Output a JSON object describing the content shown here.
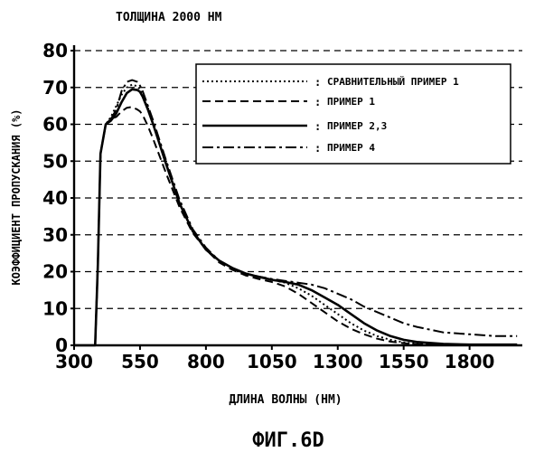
{
  "chart_data": {
    "type": "line",
    "title": "ТОЛЩИНА 2000 НМ",
    "xlabel": "ДЛИНА ВОЛНЫ (НМ)",
    "ylabel": "КОЭФФИЦИЕНТ ПРОПУСКАНИЯ (%)",
    "caption": "ФИГ.6D",
    "xlim": [
      300,
      2000
    ],
    "ylim": [
      0,
      80
    ],
    "xticks": [
      300,
      550,
      800,
      1050,
      1300,
      1550,
      1800
    ],
    "yticks": [
      0,
      10,
      20,
      30,
      40,
      50,
      60,
      70,
      80
    ],
    "grid": "horizontal dashed",
    "legend_position": "top-right",
    "series": [
      {
        "name": "СРАВНИТЕЛЬНЫЙ ПРИМЕР 1",
        "style": "dotted",
        "x": [
          300,
          340,
          360,
          380,
          390,
          400,
          420,
          440,
          460,
          480,
          500,
          520,
          540,
          550,
          560,
          580,
          600,
          650,
          700,
          750,
          800,
          850,
          900,
          950,
          1000,
          1050,
          1100,
          1150,
          1200,
          1250,
          1300,
          1350,
          1400,
          1450,
          1500,
          1550,
          1600,
          1700,
          1800,
          1900,
          1980
        ],
        "y": [
          0,
          0,
          0,
          0,
          22,
          52,
          60,
          62,
          65,
          68,
          70,
          70.8,
          70.3,
          69.5,
          68,
          64.5,
          60,
          49,
          38.5,
          31,
          26,
          23,
          21,
          19.5,
          18.6,
          17.8,
          17,
          15.5,
          13.5,
          11,
          8.5,
          6,
          4,
          2.5,
          1.5,
          0.8,
          0.4,
          0.2,
          0.1,
          0.1,
          0.1
        ]
      },
      {
        "name": "ПРИМЕР 1",
        "style": "dashed",
        "x": [
          300,
          340,
          360,
          380,
          390,
          400,
          420,
          440,
          460,
          480,
          500,
          520,
          540,
          550,
          560,
          580,
          600,
          650,
          700,
          750,
          800,
          850,
          900,
          950,
          1000,
          1050,
          1100,
          1150,
          1200,
          1250,
          1300,
          1350,
          1400,
          1450,
          1500,
          1550,
          1600,
          1700,
          1800,
          1900,
          1980
        ],
        "y": [
          0,
          0,
          0,
          0,
          22,
          52,
          60,
          61.5,
          62,
          63.5,
          64.5,
          64.7,
          64,
          63.5,
          62.5,
          59.5,
          56,
          46.5,
          37.5,
          30.5,
          26,
          22.5,
          20.5,
          19,
          18,
          17.2,
          16,
          14,
          11.5,
          9,
          6.5,
          4.5,
          3,
          1.8,
          1,
          0.6,
          0.3,
          0.1,
          0.1,
          0.1,
          0.1
        ]
      },
      {
        "name": "ПРИМЕР 2,3",
        "style": "solid",
        "x": [
          300,
          340,
          360,
          380,
          390,
          400,
          420,
          440,
          460,
          480,
          500,
          520,
          540,
          550,
          560,
          580,
          600,
          650,
          700,
          750,
          800,
          850,
          900,
          950,
          1000,
          1050,
          1100,
          1150,
          1200,
          1250,
          1300,
          1350,
          1400,
          1450,
          1500,
          1550,
          1600,
          1700,
          1800,
          1900,
          1980
        ],
        "y": [
          0,
          0,
          0,
          0,
          22,
          52,
          60,
          61,
          63,
          66,
          68.5,
          69.5,
          69.3,
          68.8,
          67.5,
          64,
          60,
          49,
          38.5,
          31,
          26,
          23,
          21,
          19.5,
          18.6,
          17.8,
          17.2,
          16.5,
          15,
          13,
          11,
          8.5,
          6,
          4,
          2.5,
          1.5,
          0.9,
          0.4,
          0.2,
          0.2,
          0.2
        ]
      },
      {
        "name": "ПРИМЕР 4",
        "style": "dash-dot",
        "x": [
          300,
          340,
          360,
          380,
          390,
          400,
          420,
          440,
          460,
          480,
          500,
          520,
          540,
          550,
          560,
          580,
          600,
          650,
          700,
          750,
          800,
          850,
          900,
          950,
          1000,
          1050,
          1100,
          1150,
          1200,
          1250,
          1300,
          1350,
          1400,
          1450,
          1500,
          1550,
          1600,
          1700,
          1800,
          1900,
          1980
        ],
        "y": [
          0,
          0,
          0,
          0,
          22,
          52,
          60,
          61.5,
          64,
          69,
          71.5,
          72,
          71.5,
          70.5,
          69,
          65,
          61,
          50,
          39.5,
          31.5,
          26.5,
          23,
          21,
          19.5,
          18.7,
          18,
          17.5,
          17,
          16.5,
          15.5,
          14,
          12.5,
          10.5,
          9,
          7.5,
          6,
          5,
          3.5,
          3,
          2.5,
          2.5
        ]
      }
    ]
  }
}
